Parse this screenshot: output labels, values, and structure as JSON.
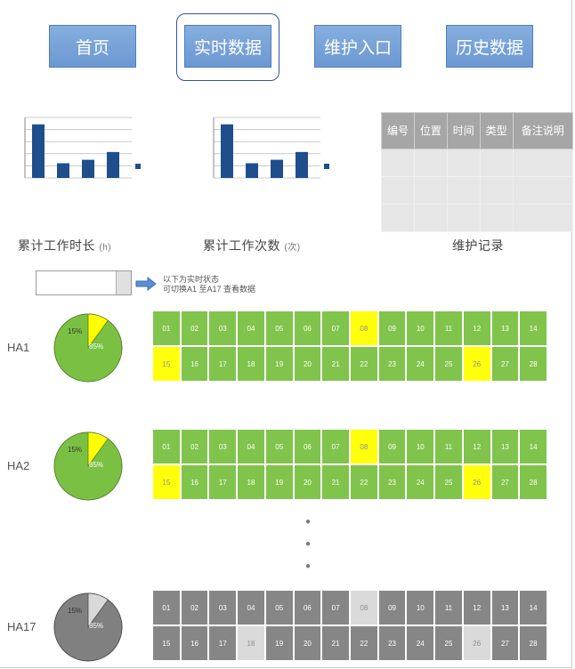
{
  "nav": {
    "home": "首页",
    "realtime": "实时数据",
    "maintenance": "维护入口",
    "history": "历史数据"
  },
  "charts": {
    "chart1_caption": "累计工作时长",
    "chart1_unit": "(h)",
    "chart2_caption": "累计工作次数",
    "chart2_unit": "(次)",
    "bar_values": [
      62,
      17,
      21,
      30
    ]
  },
  "status_table": {
    "caption": "维护记录",
    "headers": [
      "编号",
      "位置",
      "时间",
      "类型",
      "备注说明"
    ],
    "rows": [
      [
        "",
        "",
        "",
        "",
        ""
      ],
      [
        "",
        "",
        "",
        "",
        ""
      ],
      [
        "",
        "",
        "",
        "",
        ""
      ]
    ]
  },
  "selector": {
    "note_line1": "以下为实时状态",
    "note_line2": "可切换A1 至A17 查看数据"
  },
  "groups": [
    {
      "label": "HA1",
      "pie_small": "15%",
      "pie_large": "85%",
      "row1": [
        "01",
        "02",
        "03",
        "04",
        "05",
        "06",
        "07",
        "08",
        "09",
        "10",
        "11",
        "12",
        "13",
        "14"
      ],
      "row2": [
        "15",
        "16",
        "17",
        "18",
        "19",
        "20",
        "21",
        "22",
        "23",
        "24",
        "25",
        "26",
        "27",
        "28"
      ],
      "states": [
        "g",
        "g",
        "g",
        "g",
        "g",
        "g",
        "g",
        "y",
        "g",
        "g",
        "g",
        "g",
        "g",
        "g",
        "y",
        "g",
        "g",
        "g",
        "g",
        "g",
        "g",
        "g",
        "g",
        "g",
        "g",
        "y",
        "g",
        "g"
      ]
    },
    {
      "label": "HA2",
      "pie_small": "15%",
      "pie_large": "85%",
      "row1": [
        "01",
        "02",
        "03",
        "04",
        "05",
        "06",
        "07",
        "08",
        "09",
        "10",
        "11",
        "12",
        "13",
        "14"
      ],
      "row2": [
        "15",
        "16",
        "17",
        "18",
        "19",
        "20",
        "21",
        "22",
        "23",
        "24",
        "25",
        "26",
        "27",
        "28"
      ],
      "states": [
        "g",
        "g",
        "g",
        "g",
        "g",
        "g",
        "g",
        "y",
        "g",
        "g",
        "g",
        "g",
        "g",
        "g",
        "y",
        "g",
        "g",
        "g",
        "g",
        "g",
        "g",
        "g",
        "g",
        "g",
        "g",
        "y",
        "g",
        "g"
      ]
    },
    {
      "label": "HA17",
      "pie_small": "15%",
      "pie_large": "85%",
      "row1": [
        "01",
        "02",
        "03",
        "04",
        "05",
        "06",
        "07",
        "08",
        "09",
        "10",
        "11",
        "12",
        "13",
        "14"
      ],
      "row2": [
        "15",
        "16",
        "17",
        "18",
        "19",
        "20",
        "21",
        "22",
        "23",
        "24",
        "25",
        "26",
        "27",
        "28"
      ],
      "states": [
        "d",
        "d",
        "d",
        "d",
        "d",
        "d",
        "d",
        "l",
        "d",
        "d",
        "d",
        "d",
        "d",
        "d",
        "d",
        "d",
        "d",
        "l",
        "d",
        "d",
        "d",
        "d",
        "d",
        "d",
        "d",
        "l",
        "d",
        "d"
      ]
    }
  ],
  "colors": {
    "green": "#7ac143",
    "yellow": "#ffff00",
    "dark_gray": "#808080",
    "light_gray": "#d9d9d9",
    "bar_blue": "#1f4e8c",
    "nav_blue": "#6c98d2"
  }
}
